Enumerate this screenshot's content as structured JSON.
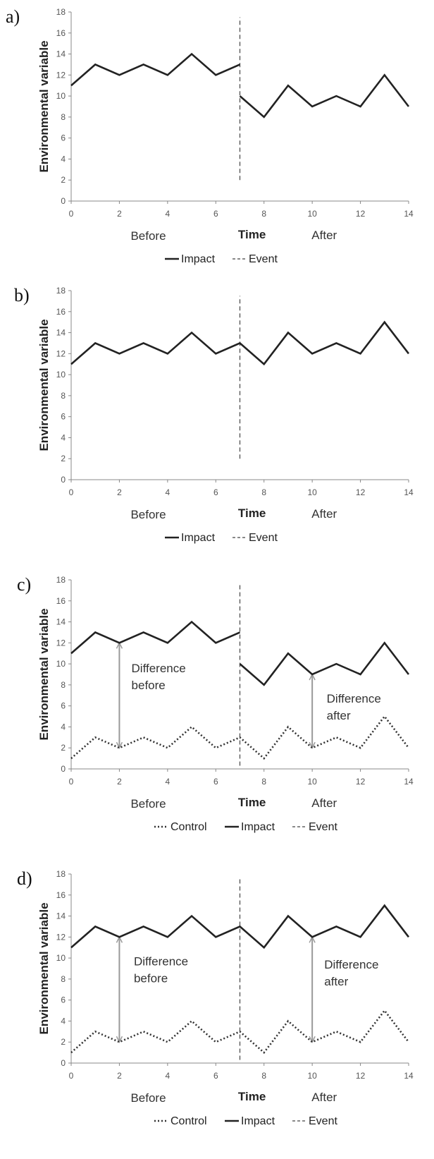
{
  "chart_data": [
    {
      "panel_label": "a)",
      "type": "line",
      "xlabel": "Time",
      "ylabel": "Environmental variable",
      "xlim": [
        0,
        14
      ],
      "ylim": [
        0,
        18
      ],
      "xticks": [
        "0",
        "2",
        "4",
        "6",
        "8",
        "10",
        "12",
        "14"
      ],
      "yticks": [
        "0",
        "2",
        "4",
        "6",
        "8",
        "10",
        "12",
        "14",
        "16",
        "18"
      ],
      "period_labels": {
        "before": "Before",
        "after": "After"
      },
      "series": [
        {
          "name": "Impact",
          "segments": [
            {
              "x": [
                0,
                1,
                2,
                3,
                4,
                5,
                6,
                7
              ],
              "y": [
                11,
                13,
                12,
                13,
                12,
                14,
                12,
                13
              ]
            },
            {
              "x": [
                7,
                8,
                9,
                10,
                11,
                12,
                13,
                14
              ],
              "y": [
                10,
                8,
                11,
                9,
                10,
                9,
                12,
                9
              ]
            }
          ]
        }
      ],
      "event": {
        "name": "Event",
        "x": 7,
        "y_range": [
          2,
          17.5
        ]
      },
      "legend": [
        "Impact",
        "Event"
      ],
      "annotations": []
    },
    {
      "panel_label": "b)",
      "type": "line",
      "xlabel": "Time",
      "ylabel": "Environmental variable",
      "xlim": [
        0,
        14
      ],
      "ylim": [
        0,
        18
      ],
      "xticks": [
        "0",
        "2",
        "4",
        "6",
        "8",
        "10",
        "12",
        "14"
      ],
      "yticks": [
        "0",
        "2",
        "4",
        "6",
        "8",
        "10",
        "12",
        "14",
        "16",
        "18"
      ],
      "period_labels": {
        "before": "Before",
        "after": "After"
      },
      "series": [
        {
          "name": "Impact",
          "segments": [
            {
              "x": [
                0,
                1,
                2,
                3,
                4,
                5,
                6,
                7,
                8,
                9,
                10,
                11,
                12,
                13,
                14
              ],
              "y": [
                11,
                13,
                12,
                13,
                12,
                14,
                12,
                13,
                11,
                14,
                12,
                13,
                12,
                15,
                12
              ]
            }
          ]
        }
      ],
      "event": {
        "name": "Event",
        "x": 7,
        "y_range": [
          2,
          17.5
        ]
      },
      "legend": [
        "Impact",
        "Event"
      ],
      "annotations": []
    },
    {
      "panel_label": "c)",
      "type": "line",
      "xlabel": "Time",
      "ylabel": "Environmental variable",
      "xlim": [
        0,
        14
      ],
      "ylim": [
        0,
        18
      ],
      "xticks": [
        "0",
        "2",
        "4",
        "6",
        "8",
        "10",
        "12",
        "14"
      ],
      "yticks": [
        "0",
        "2",
        "4",
        "6",
        "8",
        "10",
        "12",
        "14",
        "16",
        "18"
      ],
      "period_labels": {
        "before": "Before",
        "after": "After"
      },
      "series": [
        {
          "name": "Control",
          "segments": [
            {
              "x": [
                0,
                1,
                2,
                3,
                4,
                5,
                6,
                7,
                8,
                9,
                10,
                11,
                12,
                13,
                14
              ],
              "y": [
                1,
                3,
                2,
                3,
                2,
                4,
                2,
                3,
                1,
                4,
                2,
                3,
                2,
                5,
                2
              ]
            }
          ]
        },
        {
          "name": "Impact",
          "segments": [
            {
              "x": [
                0,
                1,
                2,
                3,
                4,
                5,
                6,
                7
              ],
              "y": [
                11,
                13,
                12,
                13,
                12,
                14,
                12,
                13
              ]
            },
            {
              "x": [
                7,
                8,
                9,
                10,
                11,
                12,
                13,
                14
              ],
              "y": [
                10,
                8,
                11,
                9,
                10,
                9,
                12,
                9
              ]
            }
          ]
        }
      ],
      "event": {
        "name": "Event",
        "x": 7,
        "y_range": [
          0.3,
          17.5
        ]
      },
      "legend": [
        "Control",
        "Impact",
        "Event"
      ],
      "annotations": [
        {
          "lines": [
            "Difference",
            "before"
          ],
          "arrow_x": 2,
          "arrow_y": [
            2,
            12
          ],
          "text_x": 2.5,
          "text_y": 9.2
        },
        {
          "lines": [
            "Difference",
            "after"
          ],
          "arrow_x": 10,
          "arrow_y": [
            2,
            9
          ],
          "text_x": 10.6,
          "text_y": 6.3
        }
      ]
    },
    {
      "panel_label": "d)",
      "type": "line",
      "xlabel": "Time",
      "ylabel": "Environmental variable",
      "xlim": [
        0,
        14
      ],
      "ylim": [
        0,
        18
      ],
      "xticks": [
        "0",
        "2",
        "4",
        "6",
        "8",
        "10",
        "12",
        "14"
      ],
      "yticks": [
        "0",
        "2",
        "4",
        "6",
        "8",
        "10",
        "12",
        "14",
        "16",
        "18"
      ],
      "period_labels": {
        "before": "Before",
        "after": "After"
      },
      "series": [
        {
          "name": "Control",
          "segments": [
            {
              "x": [
                0,
                1,
                2,
                3,
                4,
                5,
                6,
                7,
                8,
                9,
                10,
                11,
                12,
                13,
                14
              ],
              "y": [
                1,
                3,
                2,
                3,
                2,
                4,
                2,
                3,
                1,
                4,
                2,
                3,
                2,
                5,
                2
              ]
            }
          ]
        },
        {
          "name": "Impact",
          "segments": [
            {
              "x": [
                0,
                1,
                2,
                3,
                4,
                5,
                6,
                7,
                8,
                9,
                10,
                11,
                12,
                13,
                14
              ],
              "y": [
                11,
                13,
                12,
                13,
                12,
                14,
                12,
                13,
                11,
                14,
                12,
                13,
                12,
                15,
                12
              ]
            }
          ]
        }
      ],
      "event": {
        "name": "Event",
        "x": 7,
        "y_range": [
          0.3,
          17.5
        ]
      },
      "legend": [
        "Control",
        "Impact",
        "Event"
      ],
      "annotations": [
        {
          "lines": [
            "Difference",
            "before"
          ],
          "arrow_x": 2,
          "arrow_y": [
            2,
            12
          ],
          "text_x": 2.6,
          "text_y": 9.3
        },
        {
          "lines": [
            "Difference",
            "after"
          ],
          "arrow_x": 10,
          "arrow_y": [
            2,
            12
          ],
          "text_x": 10.5,
          "text_y": 9.0
        }
      ]
    }
  ],
  "colors": {
    "impact": "#222222",
    "control": "#333333",
    "event": "#444444",
    "arrow": "#999999",
    "axis": "#888888"
  }
}
